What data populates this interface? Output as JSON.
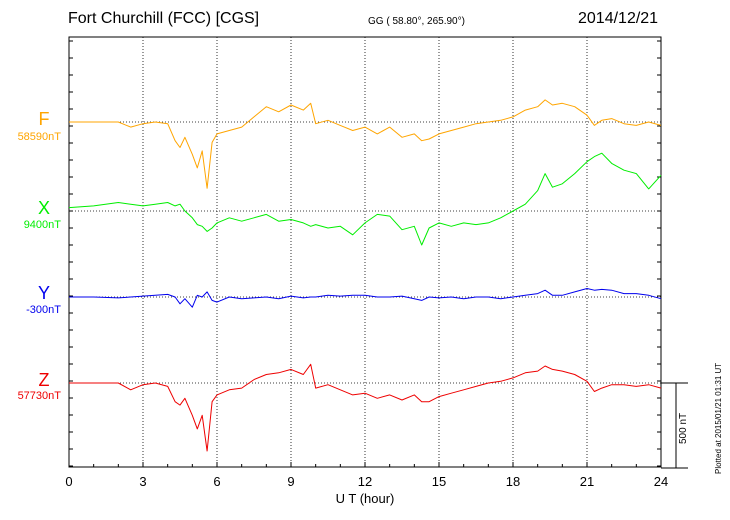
{
  "header": {
    "title": "Fort Churchill (FCC)  [CGS]",
    "coordinates": "GG ( 58.80°, 265.90°)",
    "date": "2014/12/21"
  },
  "footer": {
    "plotted": "Plotted at 2015/01/21 01:31  UT"
  },
  "chart_data": {
    "type": "line",
    "xlabel": "U T (hour)",
    "xlim": [
      0,
      24
    ],
    "xticks": [
      "0",
      "3",
      "6",
      "9",
      "12",
      "15",
      "18",
      "21",
      "24"
    ],
    "grid": true,
    "scale_bar": {
      "label": "500 nT",
      "value": 500
    },
    "x": [
      0,
      1,
      2,
      2.5,
      3,
      3.5,
      4,
      4.3,
      4.5,
      4.7,
      5.0,
      5.2,
      5.4,
      5.6,
      5.8,
      6.0,
      6.5,
      7,
      7.5,
      8,
      8.5,
      9,
      9.5,
      9.8,
      10,
      10.5,
      11,
      11.5,
      12,
      12.5,
      13,
      13.5,
      14,
      14.3,
      14.6,
      15,
      15.5,
      16,
      16.5,
      17,
      17.5,
      18,
      18.5,
      19,
      19.3,
      19.6,
      20,
      20.5,
      21,
      21.3,
      21.6,
      22,
      22.5,
      23,
      23.5,
      24
    ],
    "series": [
      {
        "name": "F",
        "baseline_label": "58590nT",
        "color": "#ffa500",
        "values": [
          58590,
          58590,
          58590,
          58560,
          58580,
          58590,
          58580,
          58480,
          58440,
          58500,
          58400,
          58320,
          58420,
          58200,
          58470,
          58520,
          58540,
          58560,
          58620,
          58680,
          58650,
          58690,
          58660,
          58700,
          58580,
          58600,
          58570,
          58540,
          58560,
          58520,
          58560,
          58500,
          58520,
          58480,
          58490,
          58520,
          58540,
          58560,
          58580,
          58590,
          58600,
          58620,
          58660,
          58680,
          58720,
          58690,
          58700,
          58680,
          58630,
          58570,
          58600,
          58610,
          58580,
          58570,
          58590,
          58570
        ]
      },
      {
        "name": "X",
        "baseline_label": "9400nT",
        "color": "#00ee00",
        "values": [
          9420,
          9430,
          9450,
          9440,
          9430,
          9440,
          9450,
          9430,
          9440,
          9400,
          9360,
          9320,
          9310,
          9280,
          9300,
          9330,
          9360,
          9340,
          9360,
          9380,
          9340,
          9350,
          9330,
          9310,
          9320,
          9300,
          9310,
          9260,
          9330,
          9380,
          9370,
          9290,
          9310,
          9200,
          9300,
          9330,
          9310,
          9330,
          9320,
          9330,
          9360,
          9400,
          9440,
          9520,
          9620,
          9540,
          9560,
          9620,
          9690,
          9720,
          9740,
          9680,
          9640,
          9620,
          9530,
          9610
        ]
      },
      {
        "name": "Y",
        "baseline_label": "-300nT",
        "color": "#0000ee",
        "values": [
          -300,
          -300,
          -305,
          -300,
          -295,
          -290,
          -285,
          -300,
          -340,
          -310,
          -360,
          -290,
          -300,
          -270,
          -320,
          -330,
          -300,
          -310,
          -305,
          -300,
          -310,
          -295,
          -305,
          -300,
          -300,
          -290,
          -295,
          -290,
          -290,
          -300,
          -300,
          -295,
          -310,
          -320,
          -300,
          -305,
          -300,
          -310,
          -300,
          -300,
          -310,
          -300,
          -290,
          -280,
          -260,
          -290,
          -290,
          -270,
          -250,
          -260,
          -255,
          -260,
          -280,
          -280,
          -290,
          -310
        ]
      },
      {
        "name": "Z",
        "baseline_label": "57730nT",
        "color": "#ee0000",
        "values": [
          57730,
          57730,
          57730,
          57690,
          57720,
          57730,
          57710,
          57620,
          57600,
          57640,
          57540,
          57460,
          57540,
          57330,
          57620,
          57660,
          57690,
          57700,
          57750,
          57780,
          57790,
          57810,
          57780,
          57840,
          57700,
          57720,
          57690,
          57660,
          57670,
          57640,
          57660,
          57630,
          57660,
          57620,
          57620,
          57650,
          57670,
          57690,
          57710,
          57730,
          57740,
          57760,
          57790,
          57800,
          57830,
          57810,
          57800,
          57780,
          57740,
          57680,
          57700,
          57720,
          57720,
          57710,
          57720,
          57700
        ]
      }
    ]
  }
}
